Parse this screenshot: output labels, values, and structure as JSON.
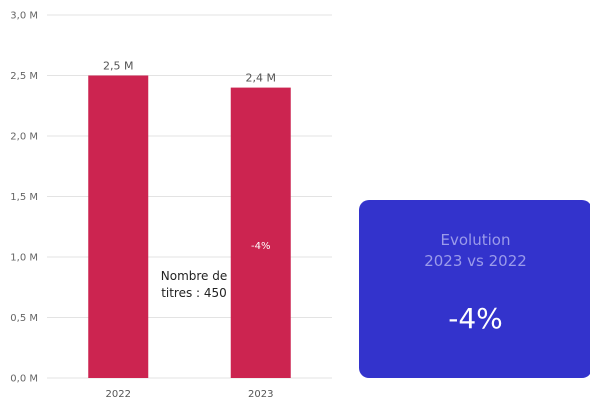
{
  "chart_data": {
    "type": "bar",
    "categories": [
      "2022",
      "2023"
    ],
    "values": [
      2.5,
      2.4
    ],
    "data_labels": [
      "2,5 M",
      "2,4 M"
    ],
    "y_ticks": [
      "0,0 M",
      "0,5 M",
      "1,0 M",
      "1,5 M",
      "2,0 M",
      "2,5 M",
      "3,0 M"
    ],
    "ylim": [
      0,
      3
    ],
    "grid": true,
    "bar_color": "#cc2450",
    "bar_annotations": [
      "",
      "-4%"
    ]
  },
  "annotation": {
    "line1": "Nombre de",
    "line2": "titres : 450"
  },
  "kpi_card": {
    "title_line1": "Evolution",
    "title_line2": "2023 vs 2022",
    "value": "-4%",
    "background": "#3333cc"
  }
}
